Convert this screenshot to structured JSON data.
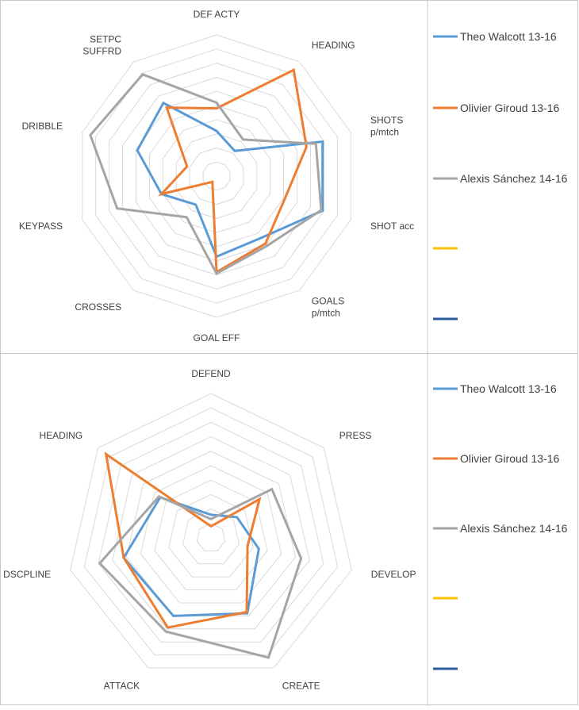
{
  "chart_data": [
    {
      "type": "radar",
      "axes": [
        "DEF ACTY",
        "HEADING",
        "SHOTS p/mtch",
        "SHOT acc",
        "GOALS p/mtch",
        "GOAL EFF",
        "CROSSES",
        "KEYPASS",
        "DRIBBLE",
        "SETPC SUFFRD"
      ],
      "axis_label_lines": [
        [
          "DEF ACTY"
        ],
        [
          "HEADING"
        ],
        [
          "SHOTS",
          "p/mtch"
        ],
        [
          "SHOT acc"
        ],
        [
          "GOALS",
          "p/mtch"
        ],
        [
          "GOAL EFF"
        ],
        [
          "CROSSES"
        ],
        [
          "KEYPASS"
        ],
        [
          "DRIBBLE"
        ],
        [
          "SETPC",
          "SUFFRD"
        ]
      ],
      "rlim": [
        0,
        10
      ],
      "series": [
        {
          "name": "Theo Walcott 13-16",
          "color": "#5B9BD5",
          "values": [
            3.2,
            2.2,
            7.9,
            7.9,
            5.4,
            5.7,
            2.5,
            4.1,
            5.9,
            6.4
          ]
        },
        {
          "name": "Olivier Giroud 13-16",
          "color": "#ED7D31",
          "values": [
            4.8,
            9.3,
            6.7,
            5.1,
            5.9,
            6.8,
            0.5,
            4.1,
            2.2,
            6.0
          ]
        },
        {
          "name": "Alexis Sánchez 14-16",
          "color": "#A5A5A5",
          "values": [
            5.2,
            3.2,
            7.4,
            7.8,
            6.1,
            6.9,
            3.6,
            7.4,
            9.4,
            8.9
          ]
        },
        {
          "name": "",
          "color": "#FFC000",
          "values": []
        },
        {
          "name": "",
          "color": "#2E5C9E",
          "values": []
        }
      ]
    },
    {
      "type": "radar",
      "axes": [
        "DEFEND",
        "PRESS",
        "DEVELOP",
        "CREATE",
        "ATTACK",
        "DSCPLINE",
        "HEADING"
      ],
      "axis_label_lines": [
        [
          "DEFEND"
        ],
        [
          "PRESS"
        ],
        [
          "DEVELOP"
        ],
        [
          "CREATE"
        ],
        [
          "ATTACK"
        ],
        [
          "DSCPLINE"
        ],
        [
          "HEADING"
        ]
      ],
      "rlim": [
        0,
        10
      ],
      "series": [
        {
          "name": "Theo Walcott 13-16",
          "color": "#5B9BD5",
          "values": [
            1.6,
            2.3,
            3.4,
            5.8,
            6.0,
            6.2,
            4.5
          ]
        },
        {
          "name": "Olivier Giroud 13-16",
          "color": "#ED7D31",
          "values": [
            0.8,
            4.3,
            2.6,
            5.7,
            6.9,
            6.2,
            9.3
          ]
        },
        {
          "name": "Alexis Sánchez 14-16",
          "color": "#A5A5A5",
          "values": [
            1.3,
            5.4,
            6.4,
            9.2,
            7.2,
            7.9,
            4.6
          ]
        },
        {
          "name": "",
          "color": "#FFC000",
          "values": []
        },
        {
          "name": "",
          "color": "#2E5C9E",
          "values": []
        }
      ]
    }
  ]
}
